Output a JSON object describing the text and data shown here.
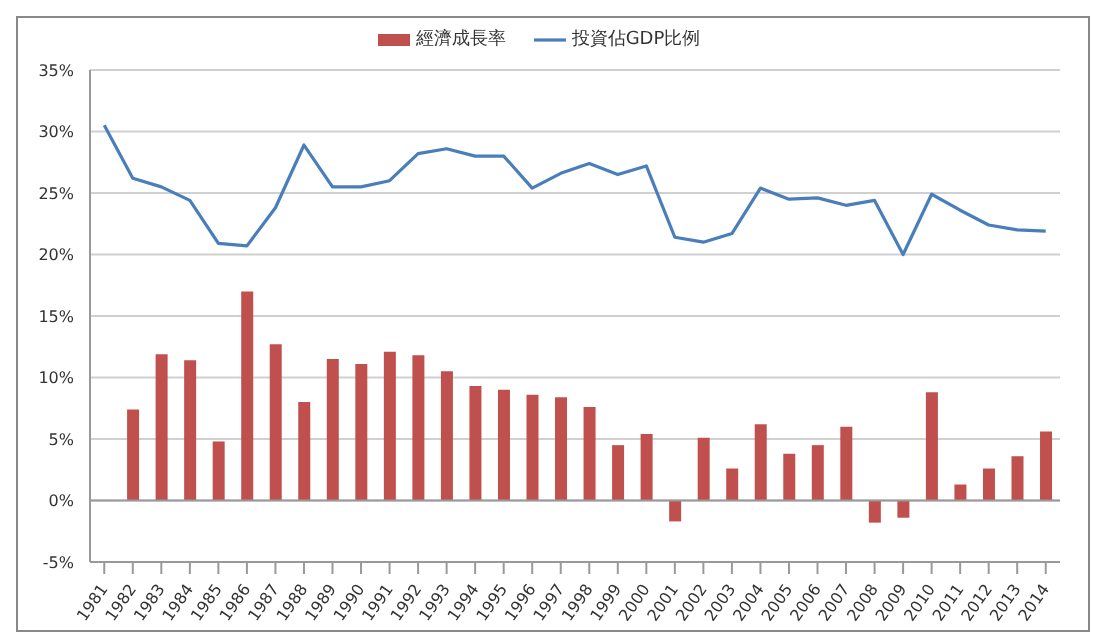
{
  "chart_data": {
    "type": "bar",
    "categories": [
      "1981",
      "1982",
      "1983",
      "1984",
      "1985",
      "1986",
      "1987",
      "1988",
      "1989",
      "1990",
      "1991",
      "1992",
      "1993",
      "1994",
      "1995",
      "1996",
      "1997",
      "1998",
      "1999",
      "2000",
      "2001",
      "2002",
      "2003",
      "2004",
      "2005",
      "2006",
      "2007",
      "2008",
      "2009",
      "2010",
      "2011",
      "2012",
      "2013",
      "2014"
    ],
    "series": [
      {
        "name": "經濟成長率",
        "color": "#c0504d",
        "values": [
          null,
          7.4,
          11.9,
          11.4,
          4.8,
          17.0,
          12.7,
          8.0,
          11.5,
          11.1,
          12.1,
          11.8,
          10.5,
          9.3,
          9.0,
          8.6,
          8.4,
          7.6,
          4.5,
          5.4,
          -1.7,
          5.1,
          2.6,
          6.2,
          3.8,
          4.5,
          6.0,
          -1.8,
          -1.4,
          8.8,
          1.3,
          2.6,
          3.6,
          5.6
        ]
      },
      {
        "name": "投資佔GDP比例",
        "type": "line",
        "color": "#4a7ebb",
        "values": [
          30.5,
          26.2,
          25.5,
          24.4,
          20.9,
          20.7,
          23.8,
          28.9,
          25.5,
          25.5,
          26.0,
          28.2,
          28.6,
          28.0,
          28.0,
          25.4,
          26.6,
          27.4,
          26.5,
          27.2,
          21.4,
          21.0,
          21.7,
          25.4,
          24.5,
          24.6,
          24.0,
          24.4,
          20.0,
          24.9,
          23.6,
          22.4,
          22.0,
          21.9
        ]
      }
    ],
    "ylim": [
      -5,
      35
    ],
    "yticks": [
      {
        "value": -5,
        "label": "-5%"
      },
      {
        "value": 0,
        "label": "0%"
      },
      {
        "value": 5,
        "label": "5%"
      },
      {
        "value": 10,
        "label": "10%"
      },
      {
        "value": 15,
        "label": "15%"
      },
      {
        "value": 20,
        "label": "20%"
      },
      {
        "value": 25,
        "label": "25%"
      },
      {
        "value": 30,
        "label": "30%"
      },
      {
        "value": 35,
        "label": "35%"
      }
    ],
    "grid": "y",
    "legend": "top",
    "marker": "none",
    "line_style": "solid"
  }
}
